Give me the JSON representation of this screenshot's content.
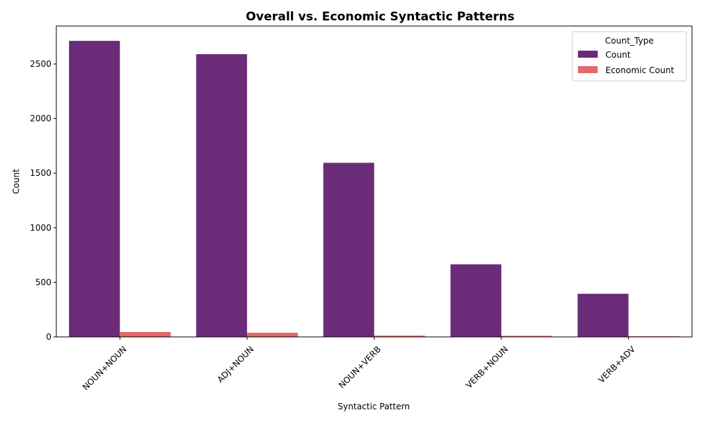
{
  "chart_data": {
    "type": "bar",
    "title": "Overall vs. Economic Syntactic Patterns",
    "xlabel": "Syntactic Pattern",
    "ylabel": "Count",
    "categories": [
      "NOUN+NOUN",
      "ADJ+NOUN",
      "NOUN+VERB",
      "VERB+NOUN",
      "VERB+ADV"
    ],
    "series": [
      {
        "name": "Count",
        "color": "#6a2c78",
        "values": [
          2712,
          2590,
          1595,
          665,
          395
        ]
      },
      {
        "name": "Economic Count",
        "color": "#e26a6a",
        "values": [
          45,
          38,
          12,
          10,
          6
        ]
      }
    ],
    "ylim": [
      0,
      2848
    ],
    "yticks": [
      0,
      500,
      1000,
      1500,
      2000,
      2500
    ],
    "ytick_labels": [
      "0",
      "500",
      "1000",
      "1500",
      "2000",
      "2500"
    ],
    "legend": {
      "title": "Count_Type",
      "placement": "top-right"
    },
    "grid": false
  }
}
